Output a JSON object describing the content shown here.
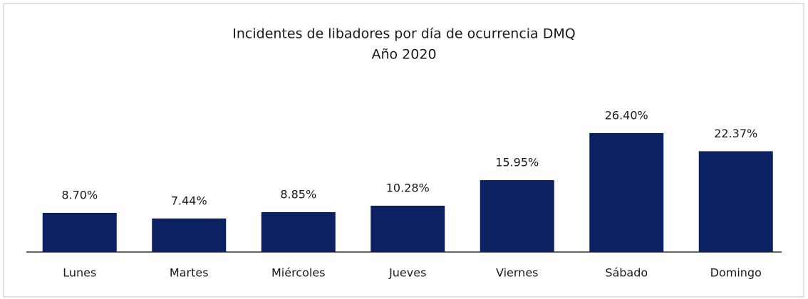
{
  "chart_data": {
    "type": "bar",
    "title": "Incidentes de libadores por día de ocurrencia DMQ",
    "subtitle": "Año 2020",
    "categories": [
      "Lunes",
      "Martes",
      "Miércoles",
      "Jueves",
      "Viernes",
      "Sábado",
      "Domingo"
    ],
    "values": [
      8.7,
      7.44,
      8.85,
      10.28,
      15.95,
      26.4,
      22.37
    ],
    "value_labels": [
      "8.70%",
      "7.44%",
      "8.85%",
      "10.28%",
      "15.95%",
      "26.40%",
      "22.37%"
    ],
    "color": "#0c2161"
  }
}
